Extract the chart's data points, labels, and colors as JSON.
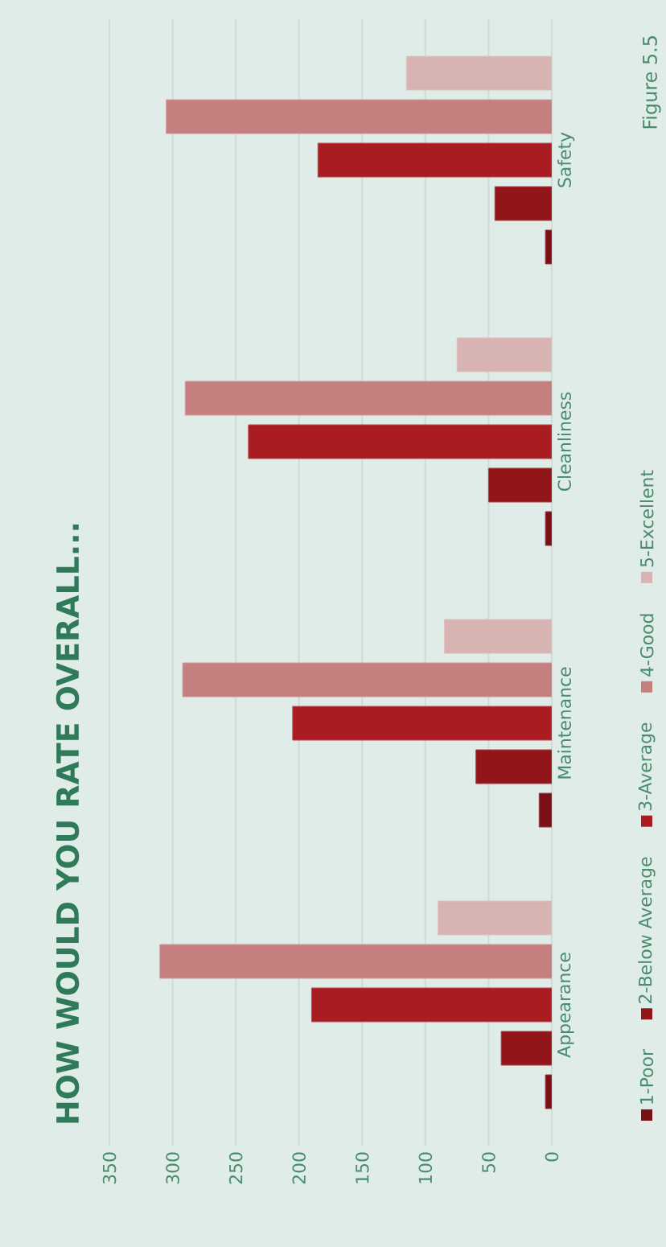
{
  "chart_data": {
    "type": "bar",
    "orientation": "horizontal",
    "title": "HOW WOULD YOU RATE OVERALL...",
    "categories": [
      "Safety",
      "Cleanliness",
      "Maintenance",
      "Appearance"
    ],
    "series": [
      {
        "name": "1-Poor",
        "color": "#7a1015",
        "values": [
          5,
          5,
          10,
          5
        ]
      },
      {
        "name": "2-Below Average",
        "color": "#921519",
        "values": [
          45,
          50,
          60,
          40
        ]
      },
      {
        "name": "3-Average",
        "color": "#a91d22",
        "values": [
          185,
          240,
          205,
          190
        ]
      },
      {
        "name": "4-Good",
        "color": "#c47f7e",
        "values": [
          305,
          290,
          292,
          310
        ]
      },
      {
        "name": "5-Excellent",
        "color": "#d7b3b2",
        "values": [
          115,
          75,
          85,
          90
        ]
      }
    ],
    "xlim": [
      350,
      0
    ],
    "xticks": [
      350,
      300,
      250,
      200,
      150,
      100,
      50,
      0
    ],
    "grid": "x",
    "legend": "right",
    "annotations": [
      "Figure 5.5"
    ]
  }
}
